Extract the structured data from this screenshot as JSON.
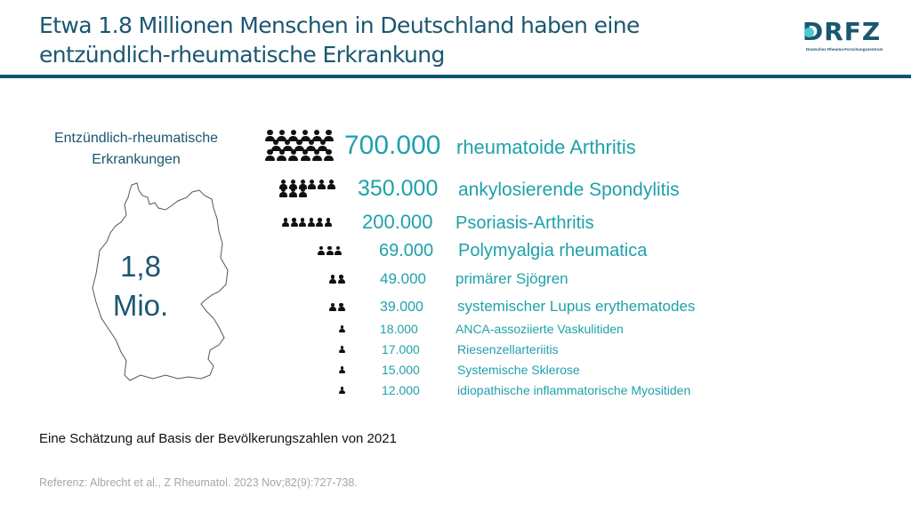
{
  "header": {
    "title_line1": "Etwa 1.8 Millionen Menschen in Deutschland haben eine",
    "title_line2": "entzündlich-rheumatische Erkrankung",
    "logo_text": "DRFZ",
    "logo_subtitle": "Deutsches Rheuma-Forschungszentrum",
    "colors": {
      "title": "#1b5770",
      "bar": "#0f5470",
      "logo_dot": "#4bc8d6"
    }
  },
  "left_panel": {
    "label_line1": "Entzündlich-rheumatische",
    "label_line2": "Erkrankungen",
    "map_icon": "germany-map-outline",
    "total_line1": "1,8",
    "total_line2": "Mio."
  },
  "diseases": [
    {
      "count": "700.000",
      "name": "rheumatoide Arthritis",
      "icon_rows": [
        6,
        5,
        6
      ]
    },
    {
      "count": "350.000",
      "name": "ankylosierende Spondylitis",
      "icon_rows": [
        6,
        3
      ]
    },
    {
      "count": "200.000",
      "name": "Psoriasis-Arthritis",
      "icon_rows": [
        6
      ]
    },
    {
      "count": "69.000",
      "name": "Polymyalgia rheumatica",
      "icon_rows": [
        3
      ]
    },
    {
      "count": "49.000",
      "name": "primärer Sjögren",
      "icon_rows": [
        2
      ]
    },
    {
      "count": "39.000",
      "name": "systemischer Lupus erythematodes",
      "icon_rows": [
        2
      ]
    },
    {
      "count": "18.000",
      "name": "ANCA-assoziierte Vaskulitiden",
      "icon_rows": [
        1
      ]
    },
    {
      "count": "17.000",
      "name": "Riesenzellarteriitis",
      "icon_rows": [
        1
      ]
    },
    {
      "count": "15.000",
      "name": "Systemische Sklerose",
      "icon_rows": [
        1
      ]
    },
    {
      "count": "12.000",
      "name": "idiopathische inflammatorische Myositiden",
      "icon_rows": [
        1
      ]
    }
  ],
  "accent_color": "#1fa1aa",
  "footer": {
    "note": "Eine Schätzung auf Basis der Bevölkerungszahlen von 2021",
    "reference": "Referenz: Albrecht et al., Z Rheumatol. 2023 Nov;82(9):727-738."
  }
}
